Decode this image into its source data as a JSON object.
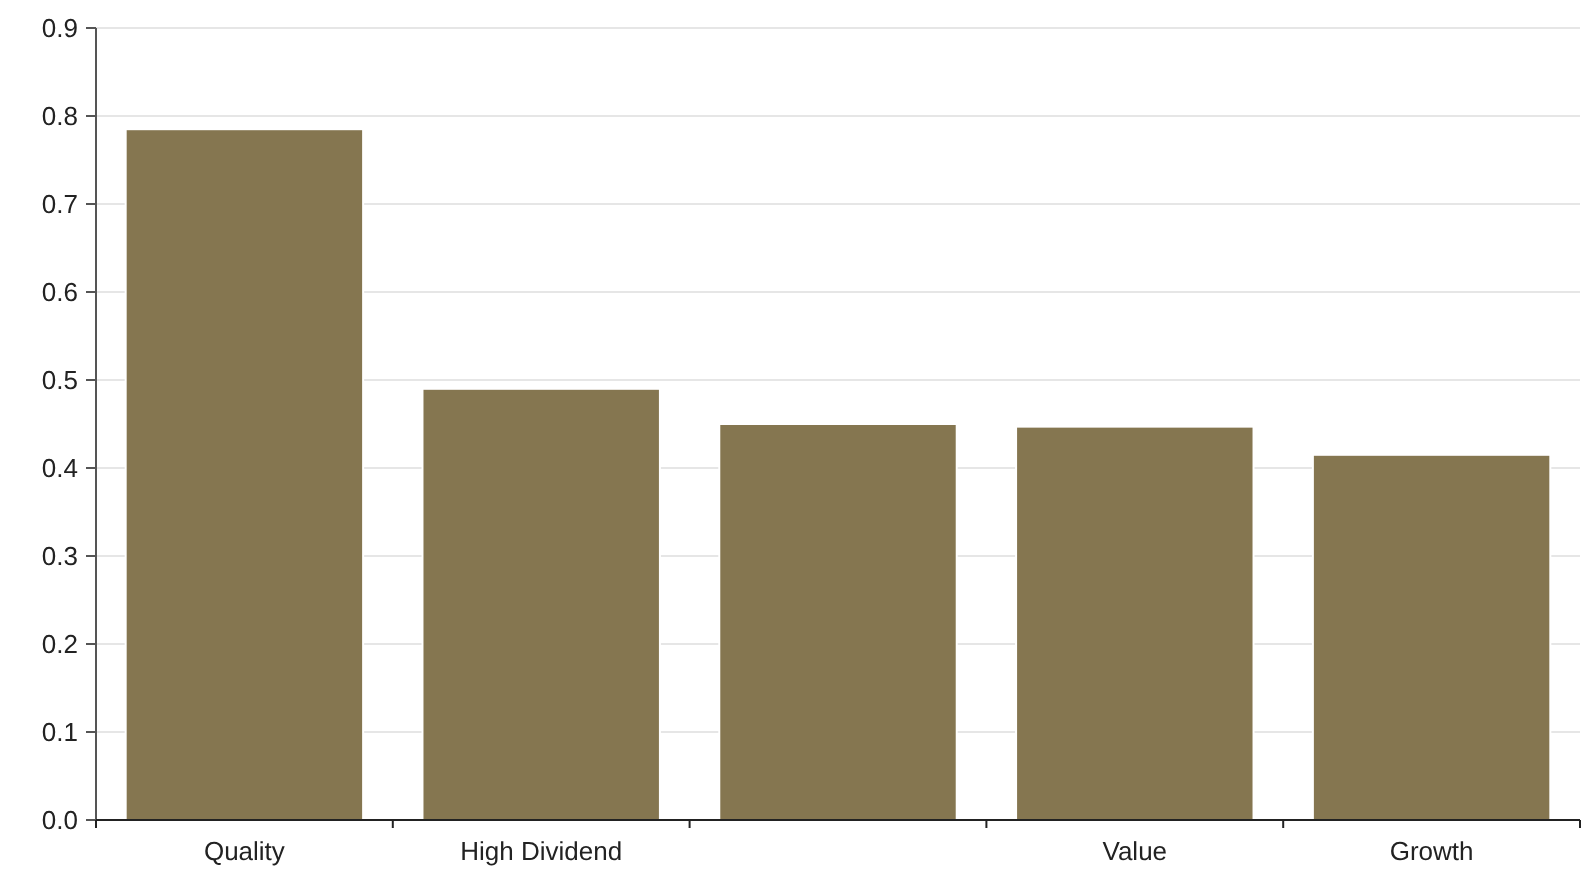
{
  "chart_data": {
    "type": "bar",
    "categories": [
      "Quality",
      "High Dividend",
      null,
      "Value",
      "Growth"
    ],
    "values": [
      0.785,
      0.49,
      0.45,
      0.447,
      0.415
    ],
    "color": "#857650",
    "ylim": [
      0,
      0.9
    ],
    "yticks": [
      {
        "value": 0,
        "label": "0.0"
      },
      0.1,
      0.2,
      0.3,
      0.4,
      0.5,
      0.6,
      0.7,
      0.8,
      0.9
    ],
    "grid": "y"
  }
}
